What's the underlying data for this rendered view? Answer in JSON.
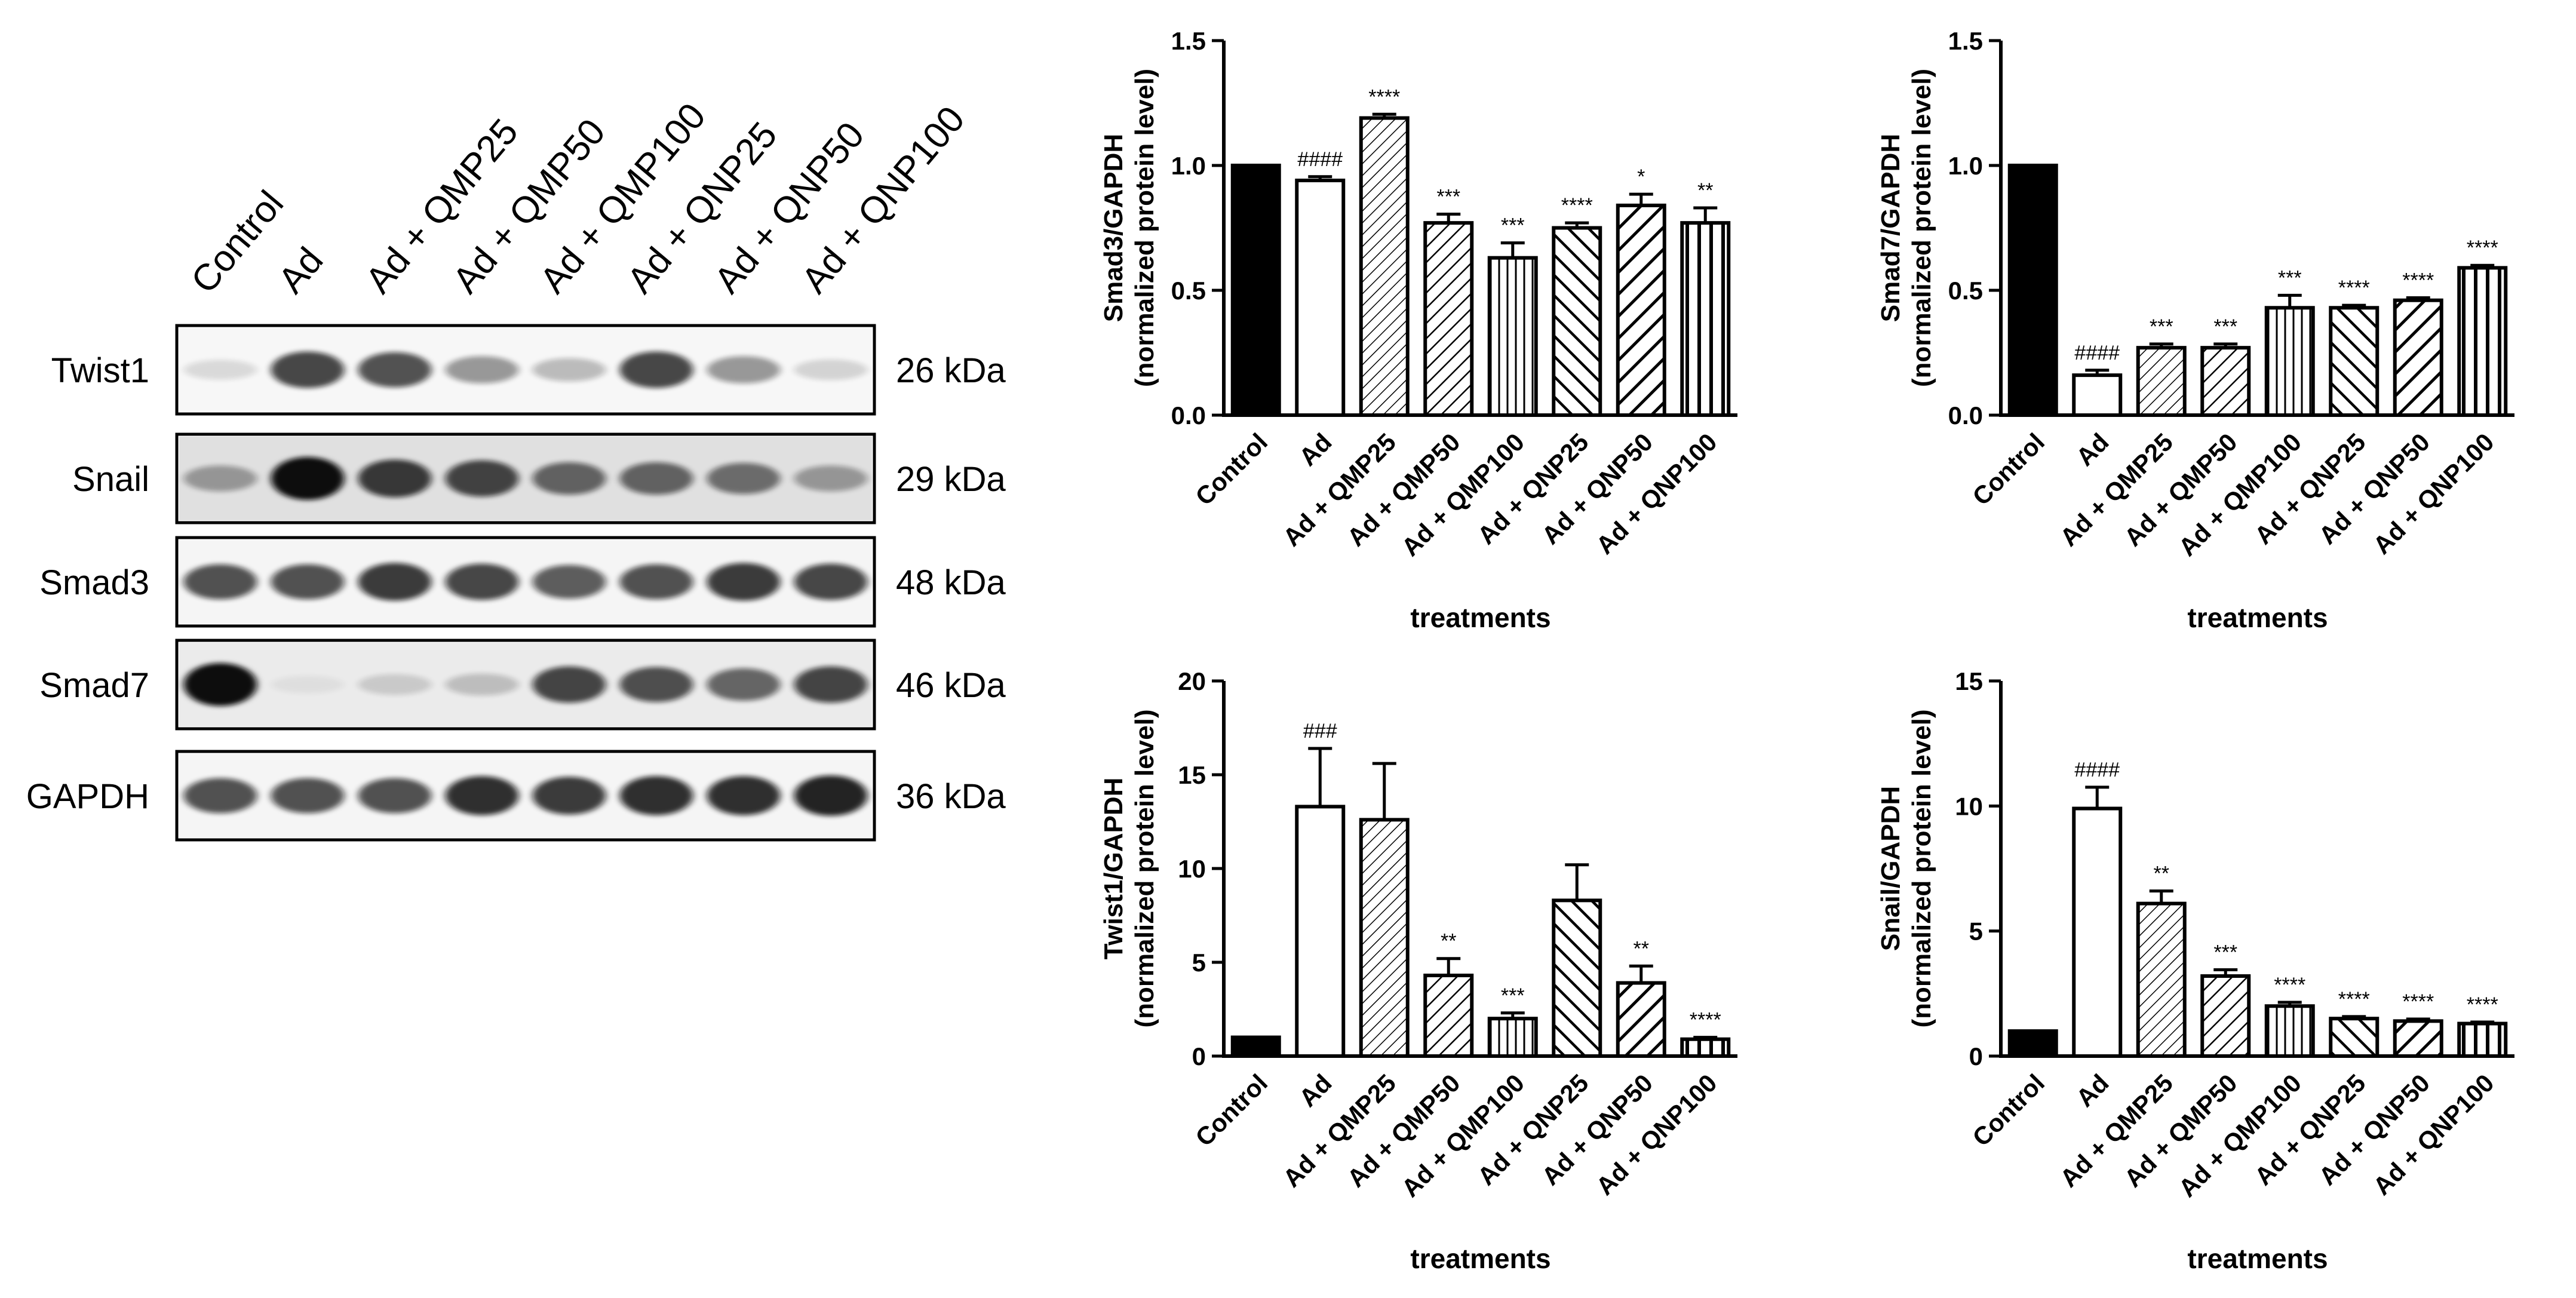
{
  "blot": {
    "lanes": [
      "Control",
      "Ad",
      "Ad + QMP25",
      "Ad + QMP50",
      "Ad + QMP100",
      "Ad + QNP25",
      "Ad + QNP50",
      "Ad + QNP100"
    ],
    "rows": [
      {
        "protein": "Twist1",
        "size": "26 kDa",
        "bands": [
          0.12,
          0.75,
          0.7,
          0.4,
          0.25,
          0.75,
          0.4,
          0.15
        ],
        "background": 0.03
      },
      {
        "protein": "Snail",
        "size": "29 kDa",
        "bands": [
          0.35,
          1.0,
          0.8,
          0.75,
          0.6,
          0.6,
          0.55,
          0.35
        ],
        "background": 0.12
      },
      {
        "protein": "Smad3",
        "size": "48 kDa",
        "bands": [
          0.7,
          0.7,
          0.8,
          0.75,
          0.65,
          0.7,
          0.8,
          0.75
        ],
        "background": 0.04
      },
      {
        "protein": "Smad7",
        "size": "46 kDa",
        "bands": [
          1.0,
          0.05,
          0.15,
          0.2,
          0.75,
          0.7,
          0.6,
          0.75
        ],
        "background": 0.08
      },
      {
        "protein": "GAPDH",
        "size": "36 kDa",
        "bands": [
          0.7,
          0.7,
          0.7,
          0.85,
          0.8,
          0.85,
          0.85,
          0.9
        ],
        "background": 0.04
      }
    ]
  },
  "colors": {
    "bar_stroke": "#000000",
    "control_fill": "#000000",
    "blot_band": "#111111"
  },
  "chart_data": [
    {
      "id": "smad3",
      "type": "bar",
      "ylabel_line1": "Smad3/GAPDH",
      "ylabel_line2": "(normalized protein level)",
      "xlabel": "treatments",
      "ylim": [
        0,
        1.5
      ],
      "yticks": [
        "0.0",
        "0.5",
        "1.0",
        "1.5"
      ],
      "ytick_values": [
        0,
        0.5,
        1.0,
        1.5
      ],
      "categories": [
        "Control",
        "Ad",
        "Ad + QMP25",
        "Ad + QMP50",
        "Ad + QMP100",
        "Ad + QNP25",
        "Ad + QNP50",
        "Ad + QNP100"
      ],
      "values": [
        1.0,
        0.94,
        1.19,
        0.77,
        0.63,
        0.75,
        0.84,
        0.77
      ],
      "errors": [
        0,
        0.015,
        0.015,
        0.035,
        0.06,
        0.02,
        0.045,
        0.06
      ],
      "annotations": [
        "",
        "####",
        "****",
        "***",
        "***",
        "****",
        "*",
        "**"
      ],
      "patterns": [
        "solid",
        "none",
        "diag-right-thin",
        "diag-right",
        "vertical",
        "diag-left",
        "diag-right-bold",
        "vertical-bold"
      ]
    },
    {
      "id": "smad7",
      "type": "bar",
      "ylabel_line1": "Smad7/GAPDH",
      "ylabel_line2": "(normalized protein level)",
      "xlabel": "treatments",
      "ylim": [
        0,
        1.5
      ],
      "yticks": [
        "0.0",
        "0.5",
        "1.0",
        "1.5"
      ],
      "ytick_values": [
        0,
        0.5,
        1.0,
        1.5
      ],
      "categories": [
        "Control",
        "Ad",
        "Ad + QMP25",
        "Ad + QMP50",
        "Ad + QMP100",
        "Ad + QNP25",
        "Ad + QNP50",
        "Ad + QNP100"
      ],
      "values": [
        1.0,
        0.16,
        0.27,
        0.27,
        0.43,
        0.43,
        0.46,
        0.59
      ],
      "errors": [
        0,
        0.02,
        0.015,
        0.015,
        0.05,
        0.01,
        0.01,
        0.01
      ],
      "annotations": [
        "",
        "####",
        "***",
        "***",
        "***",
        "****",
        "****",
        "****"
      ],
      "patterns": [
        "solid",
        "none",
        "diag-right-thin",
        "diag-right",
        "vertical",
        "diag-left",
        "diag-right-bold",
        "vertical-bold"
      ]
    },
    {
      "id": "twist1",
      "type": "bar",
      "ylabel_line1": "Twist1/GAPDH",
      "ylabel_line2": "(normalized protein level)",
      "xlabel": "treatments",
      "ylim": [
        0,
        20
      ],
      "yticks": [
        "0",
        "5",
        "10",
        "15",
        "20"
      ],
      "ytick_values": [
        0,
        5,
        10,
        15,
        20
      ],
      "categories": [
        "Control",
        "Ad",
        "Ad + QMP25",
        "Ad + QMP50",
        "Ad + QMP100",
        "Ad + QNP25",
        "Ad + QNP50",
        "Ad + QNP100"
      ],
      "values": [
        1.0,
        13.3,
        12.6,
        4.3,
        2.0,
        8.3,
        3.9,
        0.9
      ],
      "errors": [
        0,
        3.1,
        3.0,
        0.9,
        0.3,
        1.9,
        0.9,
        0.1
      ],
      "annotations": [
        "",
        "###",
        "",
        "**",
        "***",
        "",
        "**",
        "****"
      ],
      "patterns": [
        "solid",
        "none",
        "diag-right-thin",
        "diag-right",
        "vertical",
        "diag-left",
        "diag-right-bold",
        "vertical-bold"
      ]
    },
    {
      "id": "snail",
      "type": "bar",
      "ylabel_line1": "Snail/GAPDH",
      "ylabel_line2": "(normalized protein level)",
      "xlabel": "treatments",
      "ylim": [
        0,
        15
      ],
      "yticks": [
        "0",
        "5",
        "10",
        "15"
      ],
      "ytick_values": [
        0,
        5,
        10,
        15
      ],
      "categories": [
        "Control",
        "Ad",
        "Ad + QMP25",
        "Ad + QMP50",
        "Ad + QMP100",
        "Ad + QNP25",
        "Ad + QNP50",
        "Ad + QNP100"
      ],
      "values": [
        1.0,
        9.9,
        6.1,
        3.2,
        2.0,
        1.5,
        1.4,
        1.3
      ],
      "errors": [
        0,
        0.85,
        0.5,
        0.25,
        0.15,
        0.08,
        0.08,
        0.06
      ],
      "annotations": [
        "",
        "####",
        "**",
        "***",
        "****",
        "****",
        "****",
        "****"
      ],
      "patterns": [
        "solid",
        "none",
        "diag-right-thin",
        "diag-right",
        "vertical",
        "diag-left",
        "diag-right-bold",
        "vertical-bold"
      ]
    }
  ]
}
